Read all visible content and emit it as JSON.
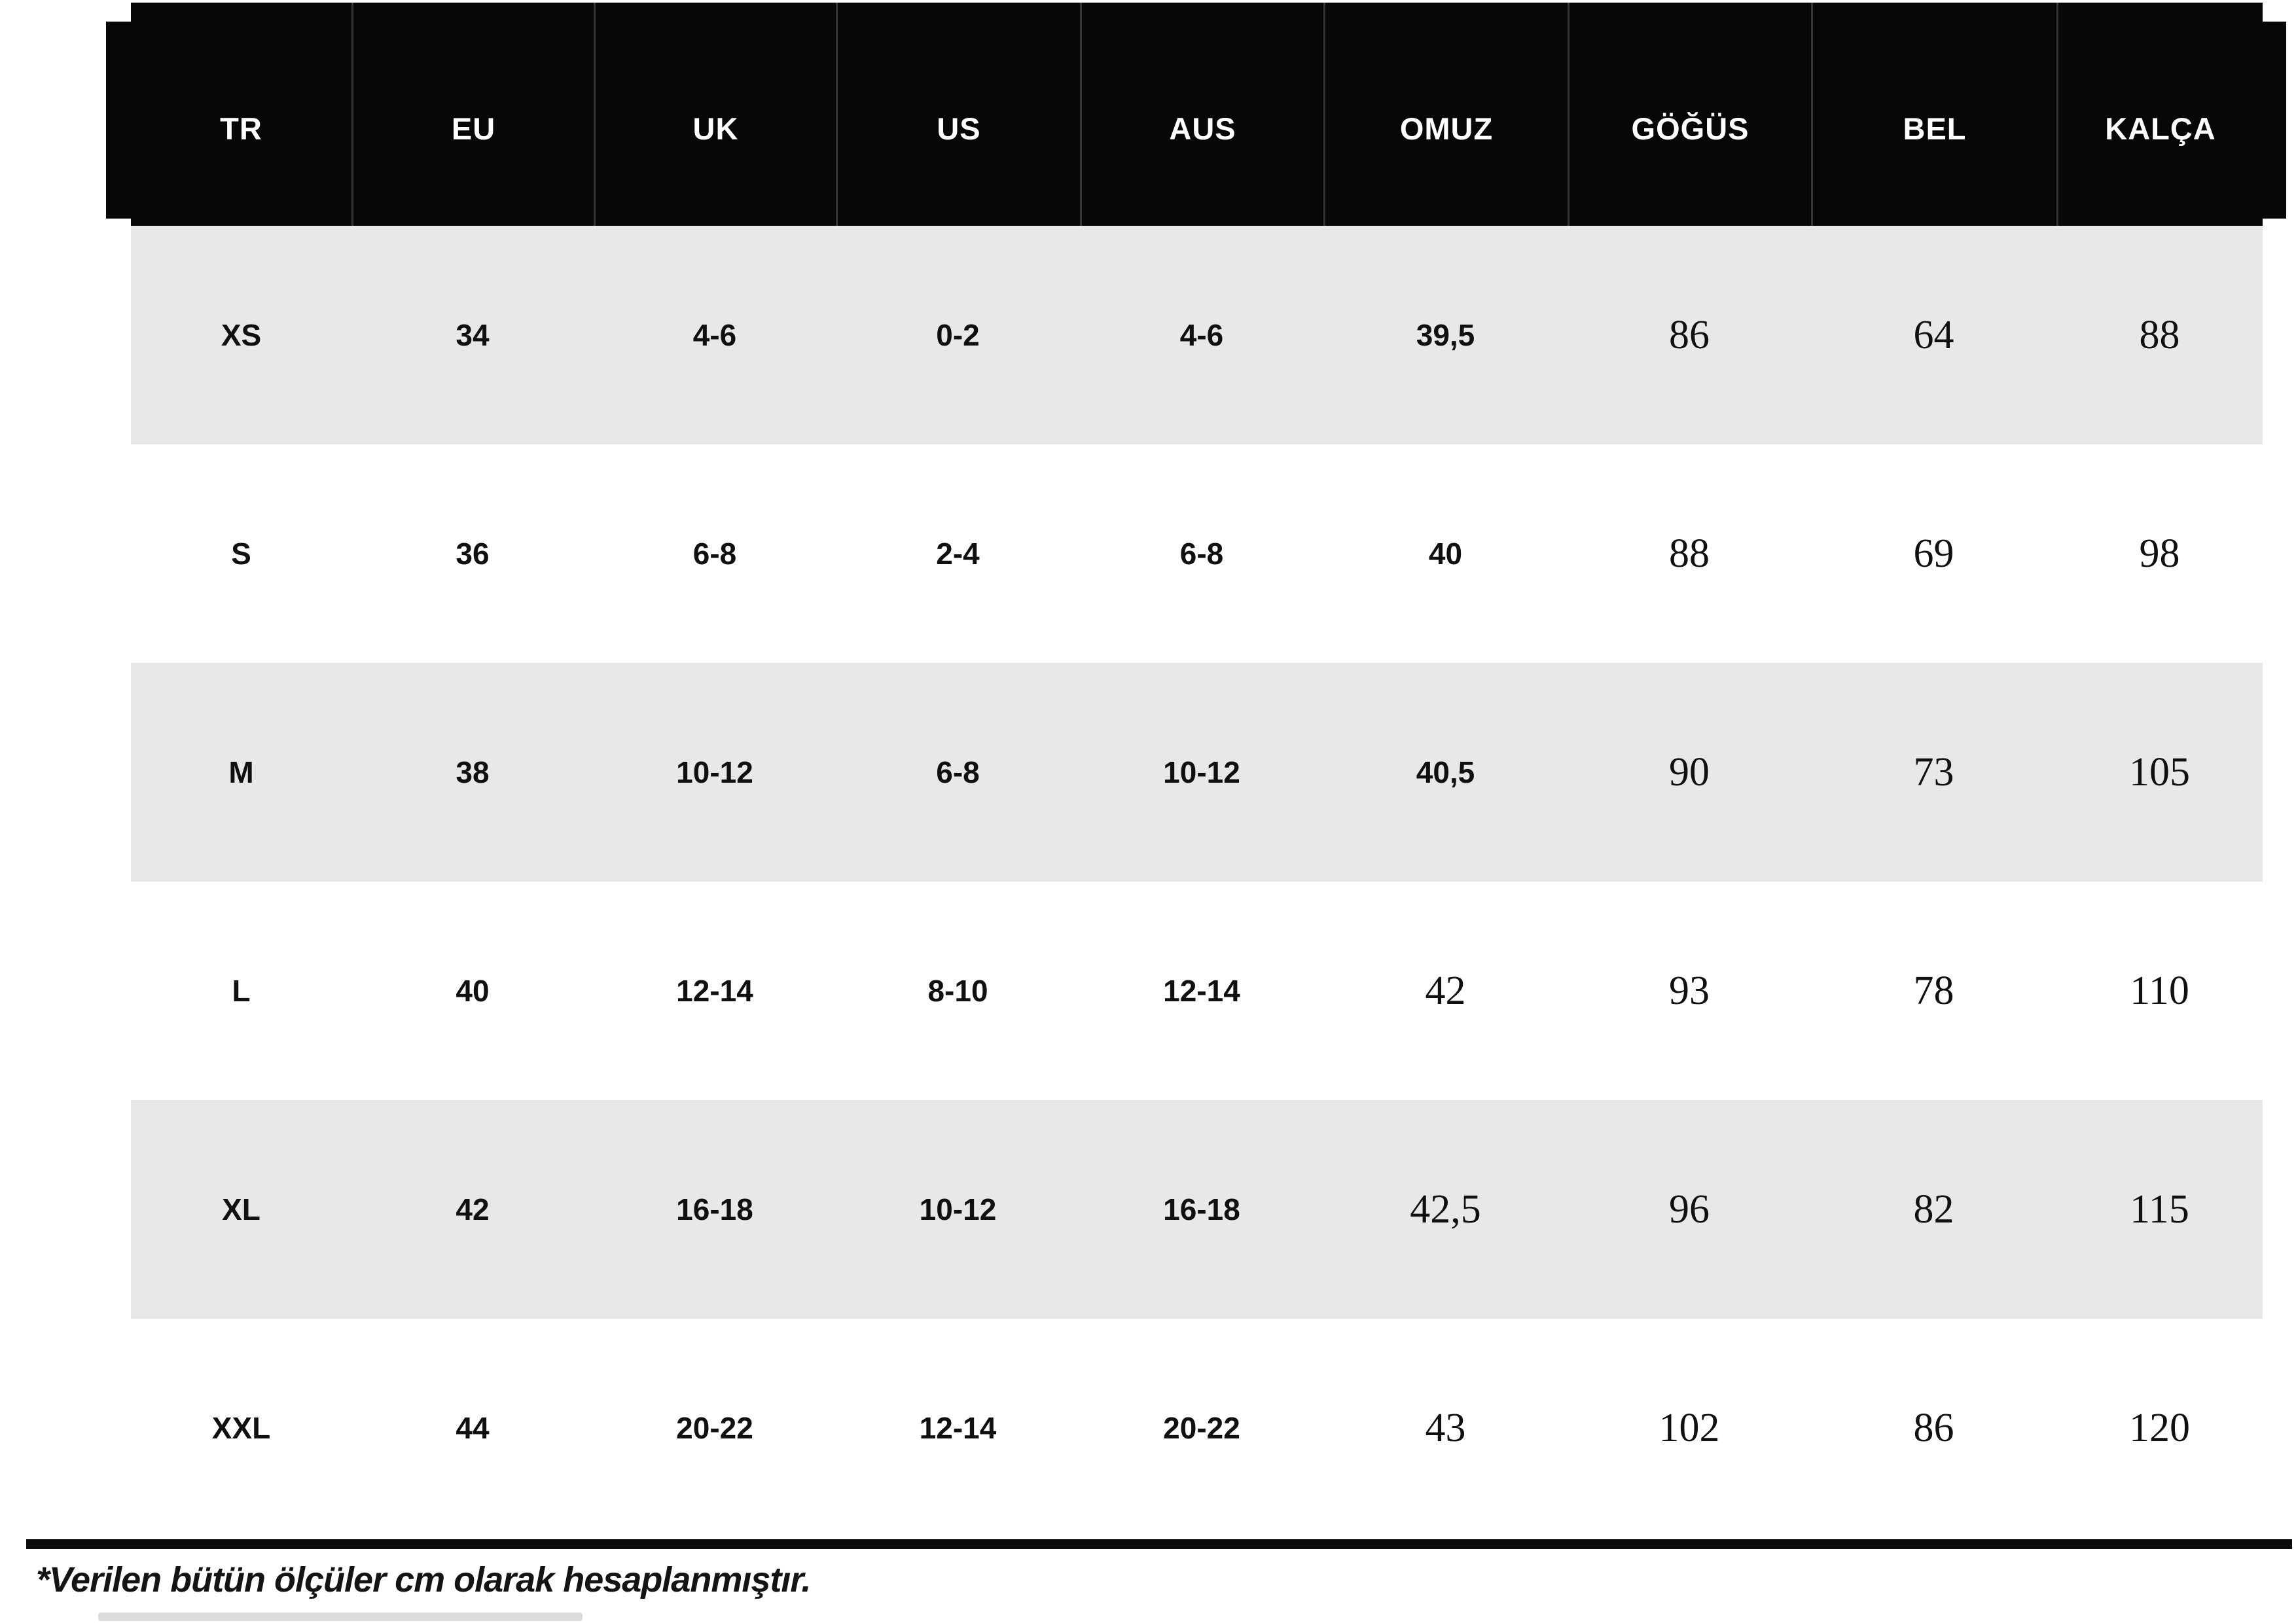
{
  "header": {
    "columns": [
      "TR",
      "EU",
      "UK",
      "US",
      "AUS",
      "OMUZ",
      "GÖĞÜS",
      "BEL",
      "KALÇA"
    ]
  },
  "rows": [
    {
      "size": "XS",
      "values": [
        "34",
        "4-6",
        "0-2",
        "4-6",
        "39,5",
        "86",
        "64",
        "88"
      ],
      "serif_from": 5
    },
    {
      "size": "S",
      "values": [
        "36",
        "6-8",
        "2-4",
        "6-8",
        "40",
        "88",
        "69",
        "98"
      ],
      "serif_from": 5
    },
    {
      "size": "M",
      "values": [
        "38",
        "10-12",
        "6-8",
        "10-12",
        "40,5",
        "90",
        "73",
        "105"
      ],
      "serif_from": 5
    },
    {
      "size": "L",
      "values": [
        "40",
        "12-14",
        "8-10",
        "12-14",
        "42",
        "93",
        "78",
        "110"
      ],
      "serif_from": 4
    },
    {
      "size": "XL",
      "values": [
        "42",
        "16-18",
        "10-12",
        "16-18",
        "42,5",
        "96",
        "82",
        "115"
      ],
      "serif_from": 4
    },
    {
      "size": "XXL",
      "values": [
        "44",
        "20-22",
        "12-14",
        "20-22",
        "43",
        "102",
        "86",
        "120"
      ],
      "serif_from": 4
    }
  ],
  "footnote": "*Verilen bütün ölçüler cm olarak hesaplanmıştır.",
  "units_note_implied": "cm",
  "colors": {
    "header_bg": "#070707",
    "header_text": "#ffffff",
    "alt_row_bg": "#e8e8e8",
    "row_bg": "#ffffff",
    "text": "#101010",
    "divider": "#0b0b0b"
  }
}
